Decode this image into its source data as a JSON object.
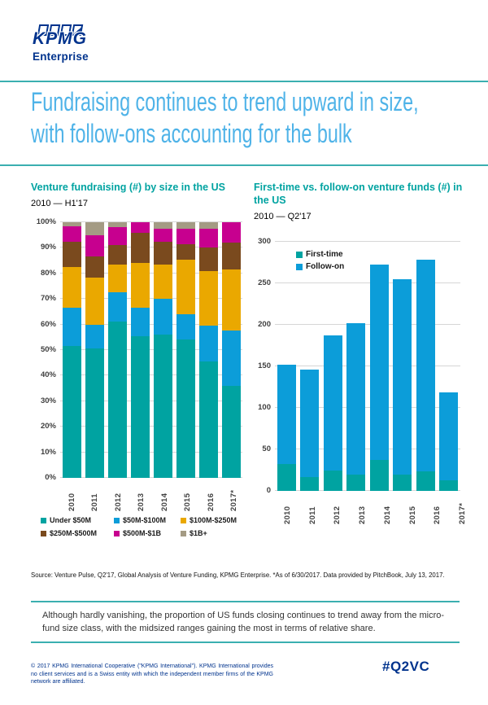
{
  "brand": {
    "kpmg": "KPMG",
    "enterprise": "Enterprise"
  },
  "header": {
    "title_line1": "Fundraising continues to trend upward in size,",
    "title_line2": "with follow-ons accounting for the bulk"
  },
  "chart_data": [
    {
      "type": "bar",
      "stacked": true,
      "units": "percent",
      "title": "Venture fundraising (#) by size in the US",
      "subtitle": "2010 — H1'17",
      "categories": [
        "2010",
        "2011",
        "2012",
        "2013",
        "2014",
        "2015",
        "2016",
        "2017*"
      ],
      "ymax": 100,
      "yticks": [
        0,
        10,
        20,
        30,
        40,
        50,
        60,
        70,
        80,
        90,
        100
      ],
      "ytick_suffix": "%",
      "grid": true,
      "legend_position": "below",
      "series": [
        {
          "name": "Under $50M",
          "color": "#00A3A1",
          "values": [
            51.5,
            50.5,
            61,
            55.5,
            56,
            54,
            45.5,
            36
          ]
        },
        {
          "name": "$50M-$100M",
          "color": "#0C9DD9",
          "values": [
            15,
            9.5,
            11.5,
            11,
            14,
            10,
            14,
            21.5
          ]
        },
        {
          "name": "$100M-$250M",
          "color": "#EAA800",
          "values": [
            16,
            18.5,
            11,
            17.5,
            13.5,
            21.5,
            21.5,
            24
          ]
        },
        {
          "name": "$250M-$500M",
          "color": "#7A4A1E",
          "values": [
            10,
            8,
            7.5,
            12,
            9,
            6,
            9,
            10.5
          ]
        },
        {
          "name": "$500M-$1B",
          "color": "#C7008F",
          "values": [
            6,
            8.5,
            7,
            4,
            5,
            6,
            7.5,
            8
          ]
        },
        {
          "name": "$1B+",
          "color": "#A49B84",
          "values": [
            1.5,
            5,
            2,
            0,
            2.5,
            2.5,
            2.5,
            0
          ]
        }
      ]
    },
    {
      "type": "bar",
      "stacked": true,
      "units": "count",
      "title": "First-time vs. follow-on venture funds (#) in the US",
      "subtitle": "2010 — Q2'17",
      "categories": [
        "2010",
        "2011",
        "2012",
        "2013",
        "2014",
        "2015",
        "2016",
        "2017*"
      ],
      "ymax": 300,
      "yticks": [
        0,
        50,
        100,
        150,
        200,
        250,
        300
      ],
      "ytick_suffix": "",
      "grid": true,
      "legend_position": "inside-top-left",
      "series": [
        {
          "name": "First-time",
          "color": "#00A3A1",
          "values": [
            32,
            17,
            25,
            20,
            37,
            20,
            24,
            13
          ]
        },
        {
          "name": "Follow-on",
          "color": "#0C9DD9",
          "values": [
            120,
            129,
            162,
            182,
            236,
            235,
            254,
            106
          ]
        }
      ]
    }
  ],
  "source": "Source: Venture Pulse, Q2'17, Global Analysis of Venture Funding, KPMG Enterprise. *As of 6/30/2017. Data provided by PitchBook, July 13, 2017.",
  "callout": "Although hardly vanishing, the proportion of US funds closing continues to trend away from the micro-fund size class, with the midsized ranges gaining the most in terms of relative share.",
  "footer": {
    "copyright": "© 2017 KPMG International Cooperative (\"KPMG International\"). KPMG International provides no client services and is a Swiss entity with which the independent member firms of the KPMG network are affiliated.",
    "hashtag": "#Q2VC"
  }
}
